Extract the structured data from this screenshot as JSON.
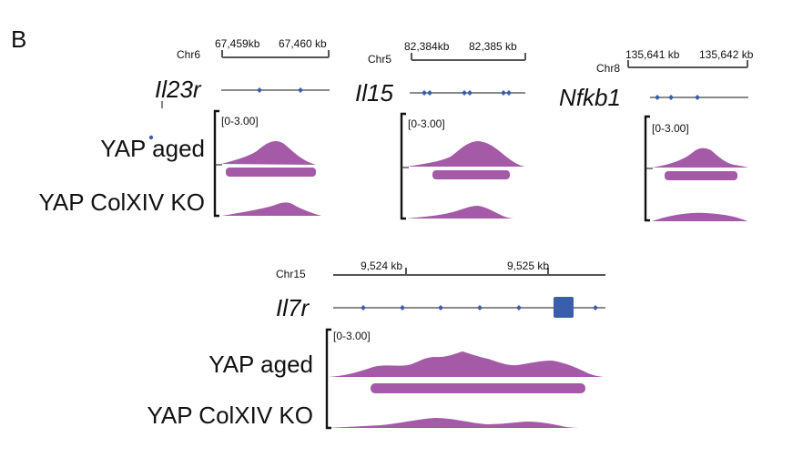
{
  "panel_label": "B",
  "colors": {
    "peak": "#a45aa7",
    "gene": "#3a5faa",
    "axis": "#555555"
  },
  "chart_data": {
    "type": "genome_browser_tracks",
    "panels": [
      {
        "gene": "Il23r",
        "chromosome": "Chr6",
        "ticks": [
          "67,459kb",
          "67,460 kb"
        ],
        "data_range": "[0-3.00]",
        "tracks": [
          {
            "sample": "YAP aged",
            "peak_called": true
          },
          {
            "sample": "YAP ColXIV KO",
            "peak_called": false
          }
        ]
      },
      {
        "gene": "Il15",
        "chromosome": "Chr5",
        "ticks": [
          "82,384kb",
          "82,385 kb"
        ],
        "data_range": "[0-3.00]",
        "tracks": [
          {
            "sample": "YAP aged",
            "peak_called": true
          },
          {
            "sample": "YAP ColXIV KO",
            "peak_called": false
          }
        ]
      },
      {
        "gene": "Nfkb1",
        "chromosome": "Chr8",
        "ticks": [
          "135,641 kb",
          "135,642 kb"
        ],
        "data_range": "[0-3.00]",
        "tracks": [
          {
            "sample": "YAP aged",
            "peak_called": true
          },
          {
            "sample": "YAP ColXIV KO",
            "peak_called": false
          }
        ]
      },
      {
        "gene": "Il7r",
        "chromosome": "Chr15",
        "ticks": [
          "9,524 kb",
          "9,525 kb"
        ],
        "data_range": "[0-3.00]",
        "tracks": [
          {
            "sample": "YAP aged",
            "peak_called": true
          },
          {
            "sample": "YAP ColXIV KO",
            "peak_called": false
          }
        ]
      }
    ]
  }
}
